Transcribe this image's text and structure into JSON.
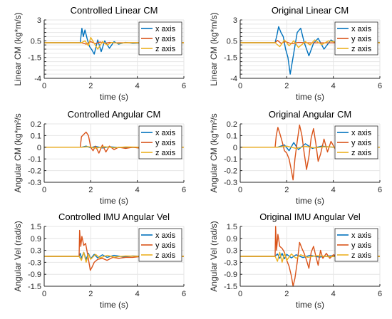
{
  "colors": {
    "x axis": "#0072bd",
    "y axis": "#d95319",
    "z axis": "#edb120",
    "grid": "#e6e6e6",
    "axis": "#262626"
  },
  "chart_data": [
    {
      "type": "line",
      "title": "Controlled Linear CM",
      "xlabel": "time (s)",
      "ylabel": "Linear CM (kg*m/s)",
      "xlim": [
        0,
        6
      ],
      "ylim": [
        -4,
        3
      ],
      "xticks": [
        "0",
        "2",
        "4",
        "6"
      ],
      "yticks": [
        "3",
        "2.5",
        "2",
        "1.5",
        "1",
        "0.5",
        "0",
        "-0.5",
        "-1",
        "-1.5",
        "-2",
        "-2.5",
        "-3",
        "-3.5",
        "-4"
      ],
      "ytick_labels": [
        "3",
        "",
        "",
        "",
        "",
        "0.5",
        "",
        "",
        "",
        "-1.5",
        "",
        "",
        "",
        "",
        "-4"
      ],
      "grid": true,
      "legend": "top-right",
      "series": [
        {
          "name": "x axis",
          "x": [
            0,
            1.55,
            1.62,
            1.68,
            1.75,
            1.85,
            1.95,
            2.05,
            2.15,
            2.3,
            2.45,
            2.6,
            2.8,
            3.0,
            3.2,
            3.5,
            3.8,
            4.3,
            6.0
          ],
          "y": [
            0.27,
            0.27,
            2.0,
            1.0,
            1.8,
            0.7,
            -0.2,
            -0.6,
            -1.1,
            0.6,
            -0.8,
            0.5,
            -0.4,
            0.4,
            0.1,
            0.3,
            0.2,
            0.25,
            0.25
          ]
        },
        {
          "name": "y axis",
          "x": [
            0,
            1.6,
            1.8,
            2.0,
            2.2,
            2.4,
            2.6,
            2.8,
            3.0,
            3.5,
            6.0
          ],
          "y": [
            0.27,
            0.27,
            0.1,
            0.4,
            0.15,
            0.35,
            0.2,
            0.3,
            0.25,
            0.27,
            0.27
          ]
        },
        {
          "name": "z axis",
          "x": [
            0,
            1.6,
            1.75,
            1.9,
            2.0,
            2.15,
            2.3,
            2.5,
            2.7,
            2.9,
            3.2,
            3.5,
            6.0
          ],
          "y": [
            0.27,
            0.27,
            0.5,
            -0.1,
            0.9,
            0.2,
            -0.5,
            0.4,
            0.0,
            0.3,
            0.2,
            0.27,
            0.27
          ]
        }
      ]
    },
    {
      "type": "line",
      "title": "Original Linear CM",
      "xlabel": "time (s)",
      "ylabel": "Linear CM (kg*m/s)",
      "xlim": [
        0,
        6
      ],
      "ylim": [
        -4,
        3
      ],
      "xticks": [
        "0",
        "2",
        "4",
        "6"
      ],
      "yticks": [
        "3",
        "2.5",
        "2",
        "1.5",
        "1",
        "0.5",
        "0",
        "-0.5",
        "-1",
        "-1.5",
        "-2",
        "-2.5",
        "-3",
        "-3.5",
        "-4"
      ],
      "ytick_labels": [
        "3",
        "",
        "",
        "",
        "",
        "0.5",
        "",
        "",
        "",
        "-1.5",
        "",
        "",
        "",
        "",
        "-4"
      ],
      "grid": true,
      "legend": "top-right",
      "series": [
        {
          "name": "x axis",
          "x": [
            0,
            1.5,
            1.58,
            1.65,
            1.75,
            1.85,
            1.95,
            2.05,
            2.15,
            2.3,
            2.45,
            2.6,
            2.75,
            2.95,
            3.15,
            3.35,
            3.6,
            3.9,
            4.2,
            4.6,
            6.0
          ],
          "y": [
            0.27,
            0.27,
            1.2,
            2.2,
            1.5,
            1.0,
            -0.5,
            -1.5,
            -3.5,
            -1.0,
            1.5,
            2.0,
            0.3,
            -1.3,
            0.2,
            0.8,
            -0.5,
            0.6,
            0.1,
            0.3,
            0.3
          ]
        },
        {
          "name": "y axis",
          "x": [
            0,
            1.5,
            1.6,
            1.75,
            1.95,
            2.2,
            2.5,
            3.0,
            6.0
          ],
          "y": [
            0.27,
            0.27,
            0.55,
            0.2,
            0.4,
            0.15,
            0.3,
            0.25,
            0.27
          ]
        },
        {
          "name": "z axis",
          "x": [
            0,
            1.5,
            1.7,
            1.9,
            2.1,
            2.3,
            2.5,
            2.8,
            3.0,
            3.2,
            3.5,
            3.8,
            4.2,
            6.0
          ],
          "y": [
            0.27,
            0.27,
            -0.2,
            0.6,
            -0.1,
            0.5,
            -0.3,
            0.4,
            0.0,
            0.6,
            0.05,
            0.5,
            0.3,
            0.27
          ]
        }
      ]
    },
    {
      "type": "line",
      "title": "Controlled Angular CM",
      "xlabel": "time (s)",
      "ylabel": "Angular CM (kg*m²/s",
      "xlim": [
        0,
        6
      ],
      "ylim": [
        -0.3,
        0.2
      ],
      "xticks": [
        "0",
        "2",
        "4",
        "6"
      ],
      "yticks": [
        "0.2",
        "0.1",
        "0",
        "-0.1",
        "-0.2",
        "-0.3"
      ],
      "grid": true,
      "legend": "top-right",
      "series": [
        {
          "name": "x axis",
          "x": [
            0,
            1.6,
            1.8,
            2.0,
            2.2,
            2.5,
            2.8,
            3.2,
            4.3,
            6.0
          ],
          "y": [
            0.0,
            0.0,
            0.01,
            -0.005,
            0.008,
            -0.006,
            0.004,
            -0.003,
            0.0,
            0.0
          ]
        },
        {
          "name": "y axis",
          "x": [
            0,
            1.55,
            1.6,
            1.7,
            1.8,
            1.9,
            2.0,
            2.1,
            2.2,
            2.35,
            2.5,
            2.65,
            2.8,
            3.0,
            3.2,
            3.5,
            3.8,
            4.2,
            6.0
          ],
          "y": [
            0.0,
            0.0,
            0.09,
            0.11,
            0.13,
            0.1,
            0.0,
            -0.03,
            0.01,
            -0.05,
            0.02,
            -0.04,
            0.01,
            -0.02,
            0.0,
            -0.01,
            0.0,
            -0.01,
            0.0
          ]
        },
        {
          "name": "z axis",
          "x": [
            0,
            1.6,
            1.9,
            2.2,
            2.6,
            3.0,
            3.5,
            4.3,
            6.0
          ],
          "y": [
            0.0,
            0.0,
            0.005,
            -0.008,
            0.004,
            -0.005,
            0.003,
            0.0,
            0.0
          ]
        }
      ]
    },
    {
      "type": "line",
      "title": "Original Angular CM",
      "xlabel": "time (s)",
      "ylabel": "Angular CM (kg*m²/s",
      "xlim": [
        0,
        6
      ],
      "ylim": [
        -0.3,
        0.2
      ],
      "xticks": [
        "0",
        "2",
        "4",
        "6"
      ],
      "yticks": [
        "0.2",
        "0.1",
        "0",
        "-0.1",
        "-0.2",
        "-0.3"
      ],
      "grid": true,
      "legend": "top-right",
      "series": [
        {
          "name": "x axis",
          "x": [
            0,
            1.6,
            1.9,
            2.1,
            2.3,
            2.5,
            2.8,
            3.1,
            3.5,
            4.0,
            6.0
          ],
          "y": [
            0.0,
            0.0,
            0.02,
            -0.03,
            0.04,
            -0.02,
            0.03,
            -0.01,
            0.01,
            0.0,
            0.0
          ]
        },
        {
          "name": "y axis",
          "x": [
            0,
            1.5,
            1.55,
            1.62,
            1.7,
            1.8,
            1.9,
            2.0,
            2.1,
            2.2,
            2.27,
            2.35,
            2.45,
            2.55,
            2.65,
            2.75,
            2.85,
            2.95,
            3.05,
            3.15,
            3.25,
            3.35,
            3.45,
            3.6,
            3.75,
            3.9,
            4.1,
            4.3,
            4.6,
            6.0
          ],
          "y": [
            0.0,
            0.0,
            0.1,
            0.17,
            0.12,
            0.05,
            -0.03,
            -0.05,
            -0.1,
            -0.2,
            -0.28,
            -0.1,
            0.05,
            0.19,
            0.1,
            -0.05,
            -0.19,
            -0.08,
            0.08,
            0.16,
            0.03,
            -0.12,
            -0.06,
            0.07,
            -0.04,
            0.05,
            -0.02,
            0.02,
            0.0,
            0.0
          ]
        },
        {
          "name": "z axis",
          "x": [
            0,
            1.6,
            2.0,
            2.4,
            2.8,
            3.2,
            3.6,
            4.2,
            6.0
          ],
          "y": [
            0.0,
            0.0,
            0.01,
            -0.01,
            0.008,
            -0.006,
            0.004,
            0.0,
            0.0
          ]
        }
      ]
    },
    {
      "type": "line",
      "title": "Controlled IMU Angular Vel",
      "xlabel": "time (s)",
      "ylabel": "Angular Vel (rad/s)",
      "xlim": [
        0,
        6
      ],
      "ylim": [
        -1.5,
        1.5
      ],
      "xticks": [
        "0",
        "2",
        "4",
        "6"
      ],
      "yticks": [
        "1.5",
        "0.9",
        "0.3",
        "-0.3",
        "-0.9",
        "-1.5"
      ],
      "grid": true,
      "legend": "top-right",
      "series": [
        {
          "name": "x axis",
          "x": [
            0,
            1.5,
            1.55,
            1.6,
            1.7,
            1.8,
            1.9,
            2.0,
            2.15,
            2.3,
            2.5,
            2.7,
            3.0,
            3.4,
            3.8,
            4.3,
            6.0
          ],
          "y": [
            0.0,
            0.0,
            0.15,
            -0.1,
            0.2,
            -0.15,
            0.15,
            -0.12,
            0.1,
            -0.08,
            0.08,
            -0.05,
            0.05,
            -0.03,
            0.02,
            0.0,
            0.0
          ]
        },
        {
          "name": "y axis",
          "x": [
            0,
            1.5,
            1.52,
            1.57,
            1.62,
            1.7,
            1.78,
            1.88,
            1.98,
            2.05,
            2.15,
            2.3,
            2.5,
            2.7,
            2.95,
            3.2,
            3.5,
            3.8,
            4.2,
            4.35,
            6.0
          ],
          "y": [
            0.0,
            0.0,
            1.3,
            0.5,
            1.0,
            0.55,
            0.65,
            0.0,
            -0.7,
            -0.55,
            -0.3,
            -0.15,
            -0.1,
            -0.2,
            -0.05,
            -0.1,
            -0.05,
            -0.05,
            0.0,
            0.0,
            0.0
          ]
        },
        {
          "name": "z axis",
          "x": [
            0,
            1.5,
            1.6,
            1.7,
            1.8,
            1.9,
            2.0,
            2.2,
            2.4,
            2.7,
            3.0,
            3.5,
            4.3,
            6.0
          ],
          "y": [
            0.0,
            0.0,
            -0.2,
            0.2,
            -0.3,
            0.1,
            -0.15,
            0.1,
            -0.08,
            0.05,
            -0.04,
            0.02,
            0.0,
            0.0
          ]
        }
      ]
    },
    {
      "type": "line",
      "title": "Original IMU Angular Vel",
      "xlabel": "time (s)",
      "ylabel": "Angular Vel (rad/s)",
      "xlim": [
        0,
        6
      ],
      "ylim": [
        -1.5,
        1.5
      ],
      "xticks": [
        "0",
        "2",
        "4",
        "6"
      ],
      "yticks": [
        "1.5",
        "0.9",
        "0.3",
        "-0.3",
        "-0.9",
        "-1.5"
      ],
      "grid": true,
      "legend": "top-right",
      "series": [
        {
          "name": "x axis",
          "x": [
            0,
            1.5,
            1.6,
            1.7,
            1.8,
            1.9,
            2.0,
            2.2,
            2.4,
            2.7,
            3.0,
            3.4,
            3.9,
            4.3,
            6.0
          ],
          "y": [
            0.0,
            0.0,
            0.12,
            -0.1,
            0.15,
            -0.12,
            0.1,
            -0.08,
            0.08,
            -0.06,
            0.05,
            -0.04,
            0.03,
            0.0,
            0.0
          ]
        },
        {
          "name": "y axis",
          "x": [
            0,
            1.5,
            1.52,
            1.56,
            1.62,
            1.7,
            1.8,
            1.9,
            2.0,
            2.1,
            2.2,
            2.27,
            2.35,
            2.45,
            2.55,
            2.65,
            2.75,
            2.85,
            2.95,
            3.05,
            3.15,
            3.25,
            3.35,
            3.45,
            3.55,
            3.7,
            3.85,
            4.0,
            4.2,
            4.4,
            6.0
          ],
          "y": [
            0.0,
            0.0,
            1.5,
            0.3,
            1.1,
            0.5,
            0.4,
            0.2,
            -0.2,
            -0.5,
            -1.0,
            -1.5,
            -1.1,
            -0.3,
            0.7,
            0.4,
            0.15,
            -0.2,
            -0.6,
            0.2,
            0.5,
            0.0,
            -0.45,
            0.3,
            -0.1,
            0.15,
            -0.1,
            0.08,
            0.0,
            0.0,
            0.0
          ]
        },
        {
          "name": "z axis",
          "x": [
            0,
            1.5,
            1.6,
            1.7,
            1.8,
            1.9,
            2.0,
            2.2,
            2.4,
            2.6,
            2.9,
            3.3,
            3.8,
            4.3,
            6.0
          ],
          "y": [
            0.0,
            0.0,
            -0.25,
            0.2,
            -0.3,
            0.15,
            -0.2,
            0.12,
            -0.1,
            0.08,
            -0.05,
            0.04,
            -0.02,
            0.0,
            0.0
          ]
        }
      ]
    }
  ]
}
